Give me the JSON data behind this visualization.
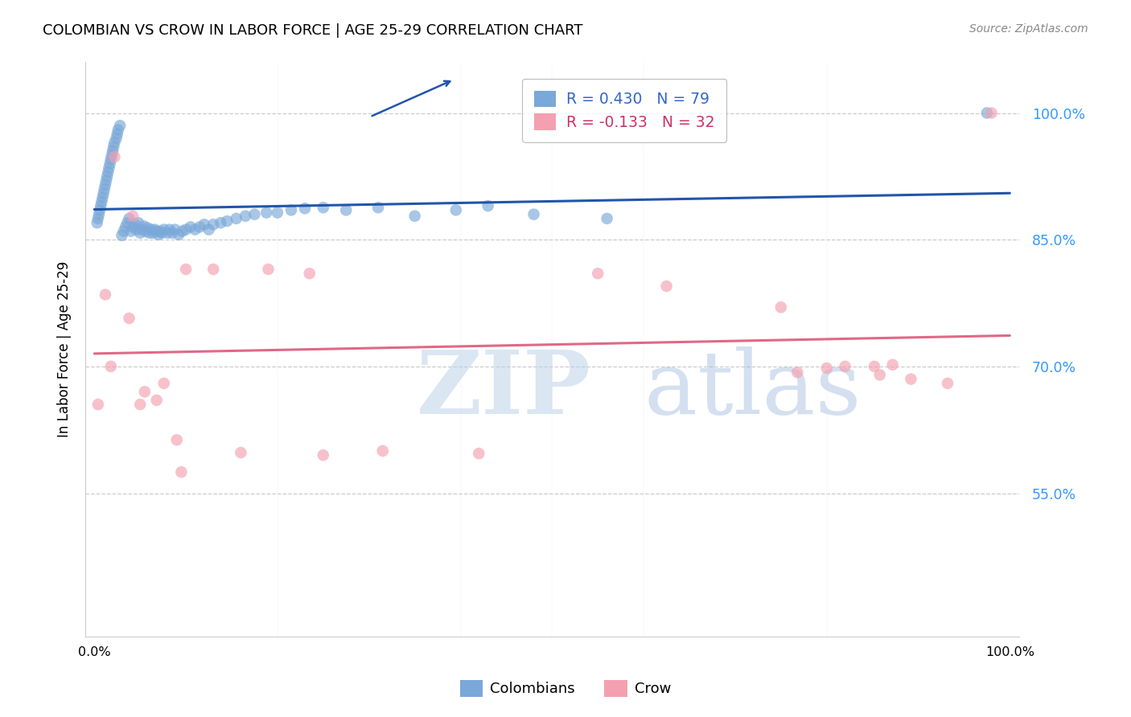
{
  "title": "COLOMBIAN VS CROW IN LABOR FORCE | AGE 25-29 CORRELATION CHART",
  "source": "Source: ZipAtlas.com",
  "ylabel": "In Labor Force | Age 25-29",
  "xlim": [
    -0.01,
    1.01
  ],
  "ylim": [
    0.38,
    1.06
  ],
  "yticks": [
    0.55,
    0.7,
    0.85,
    1.0
  ],
  "ytick_labels": [
    "55.0%",
    "70.0%",
    "85.0%",
    "100.0%"
  ],
  "legend_blue_text": "R = 0.430   N = 79",
  "legend_pink_text": "R = -0.133   N = 32",
  "legend_label_blue": "Colombians",
  "legend_label_pink": "Crow",
  "blue_scatter_color": "#7aa8d8",
  "pink_scatter_color": "#f4a0b0",
  "blue_line_color": "#2255aa",
  "pink_line_color": "#e06888",
  "legend_text_blue": "#3366CC",
  "legend_text_pink": "#cc3366",
  "tick_color": "#3399FF",
  "grid_color": "#cccccc",
  "colombians_x": [
    0.003,
    0.004,
    0.005,
    0.006,
    0.007,
    0.008,
    0.009,
    0.01,
    0.011,
    0.012,
    0.013,
    0.014,
    0.015,
    0.016,
    0.017,
    0.018,
    0.019,
    0.02,
    0.021,
    0.022,
    0.024,
    0.025,
    0.026,
    0.028,
    0.03,
    0.032,
    0.034,
    0.036,
    0.038,
    0.04,
    0.042,
    0.044,
    0.046,
    0.048,
    0.05,
    0.052,
    0.054,
    0.056,
    0.058,
    0.06,
    0.062,
    0.064,
    0.066,
    0.068,
    0.07,
    0.072,
    0.074,
    0.076,
    0.08,
    0.082,
    0.085,
    0.088,
    0.092,
    0.096,
    0.1,
    0.105,
    0.11,
    0.115,
    0.12,
    0.125,
    0.13,
    0.138,
    0.145,
    0.155,
    0.165,
    0.175,
    0.188,
    0.2,
    0.215,
    0.23,
    0.25,
    0.275,
    0.31,
    0.35,
    0.395,
    0.43,
    0.48,
    0.56,
    0.975
  ],
  "colombians_y": [
    0.87,
    0.875,
    0.88,
    0.885,
    0.89,
    0.895,
    0.9,
    0.905,
    0.91,
    0.915,
    0.92,
    0.925,
    0.93,
    0.935,
    0.94,
    0.945,
    0.95,
    0.955,
    0.96,
    0.965,
    0.97,
    0.975,
    0.98,
    0.985,
    0.855,
    0.86,
    0.865,
    0.87,
    0.875,
    0.86,
    0.865,
    0.868,
    0.862,
    0.87,
    0.858,
    0.862,
    0.866,
    0.86,
    0.864,
    0.858,
    0.862,
    0.858,
    0.862,
    0.86,
    0.856,
    0.86,
    0.858,
    0.862,
    0.858,
    0.862,
    0.858,
    0.862,
    0.856,
    0.86,
    0.862,
    0.865,
    0.862,
    0.865,
    0.868,
    0.862,
    0.868,
    0.87,
    0.872,
    0.875,
    0.878,
    0.88,
    0.882,
    0.882,
    0.885,
    0.887,
    0.888,
    0.885,
    0.888,
    0.878,
    0.885,
    0.89,
    0.88,
    0.875,
    1.0
  ],
  "crow_x": [
    0.004,
    0.012,
    0.018,
    0.022,
    0.038,
    0.042,
    0.05,
    0.055,
    0.068,
    0.076,
    0.09,
    0.095,
    0.1,
    0.13,
    0.16,
    0.19,
    0.235,
    0.25,
    0.315,
    0.42,
    0.55,
    0.625,
    0.75,
    0.768,
    0.8,
    0.82,
    0.852,
    0.858,
    0.872,
    0.892,
    0.932,
    0.98
  ],
  "crow_y": [
    0.655,
    0.785,
    0.7,
    0.948,
    0.757,
    0.878,
    0.655,
    0.67,
    0.66,
    0.68,
    0.613,
    0.575,
    0.815,
    0.815,
    0.598,
    0.815,
    0.81,
    0.595,
    0.6,
    0.597,
    0.81,
    0.795,
    0.77,
    0.693,
    0.698,
    0.7,
    0.7,
    0.69,
    0.702,
    0.685,
    0.68,
    1.0
  ]
}
